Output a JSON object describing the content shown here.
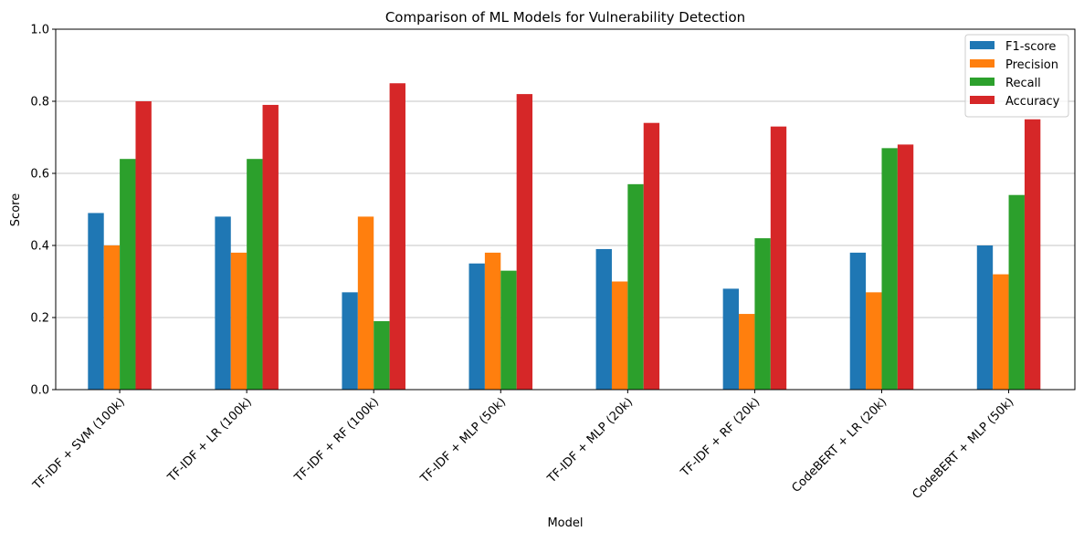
{
  "chart_data": {
    "type": "bar",
    "title": "Comparison of ML Models for Vulnerability Detection",
    "xlabel": "Model",
    "ylabel": "Score",
    "ylim": [
      0,
      1.0
    ],
    "yticks": [
      "0.0",
      "0.2",
      "0.4",
      "0.6",
      "0.8",
      "1.0"
    ],
    "grid": "horizontal",
    "legend_position": "top-right",
    "categories": [
      "TF-IDF + SVM (100k)",
      "TF-IDF + LR (100k)",
      "TF-IDF + RF (100k)",
      "TF-IDF + MLP (50k)",
      "TF-IDF + MLP (20k)",
      "TF-IDF + RF (20k)",
      "CodeBERT + LR (20k)",
      "CodeBERT + MLP (50k)"
    ],
    "series": [
      {
        "name": "F1-score",
        "color": "#1f77b4",
        "values": [
          0.49,
          0.48,
          0.27,
          0.35,
          0.39,
          0.28,
          0.38,
          0.4
        ]
      },
      {
        "name": "Precision",
        "color": "#ff7f0e",
        "values": [
          0.4,
          0.38,
          0.48,
          0.38,
          0.3,
          0.21,
          0.27,
          0.32
        ]
      },
      {
        "name": "Recall",
        "color": "#2ca02c",
        "values": [
          0.64,
          0.64,
          0.19,
          0.33,
          0.57,
          0.42,
          0.67,
          0.54
        ]
      },
      {
        "name": "Accuracy",
        "color": "#d62728",
        "values": [
          0.8,
          0.79,
          0.85,
          0.82,
          0.74,
          0.73,
          0.68,
          0.75
        ]
      }
    ]
  }
}
